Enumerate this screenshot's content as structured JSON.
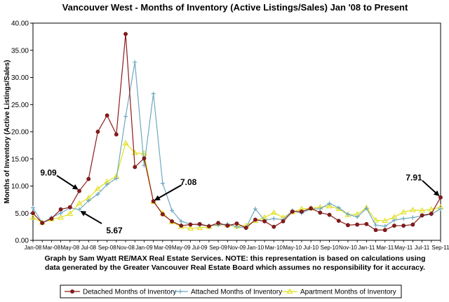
{
  "chart_data": {
    "type": "line",
    "title": "Vancouver West - Months of Inventory (Active Listings/Sales) Jan '08 to Present",
    "ylabel": "Months of Inventory (Active Listings/Sales)",
    "xlabel": "",
    "ylim": [
      0,
      40
    ],
    "yticks": [
      "0.00",
      "5.00",
      "10.00",
      "15.00",
      "20.00",
      "25.00",
      "30.00",
      "35.00",
      "40.00"
    ],
    "ytick_values": [
      0,
      5,
      10,
      15,
      20,
      25,
      30,
      35,
      40
    ],
    "x": [
      "Jan-08",
      "Feb-08",
      "Mar-08",
      "Apr-08",
      "May-08",
      "Jun-08",
      "Jul-08",
      "Aug-08",
      "Sep-08",
      "Oct-08",
      "Nov-08",
      "Dec-08",
      "Jan-09",
      "Feb-09",
      "Mar-09",
      "Apr-09",
      "May-09",
      "Jun-09",
      "Jul-09",
      "Aug-09",
      "Sep-09",
      "Oct-09",
      "Nov-09",
      "Dec-09",
      "Jan-10",
      "Feb-10",
      "Mar-10",
      "Apr-10",
      "May-10",
      "Jun-10",
      "Jul-10",
      "Aug-10",
      "Sep-10",
      "Oct-10",
      "Nov-10",
      "Dec-10",
      "Jan-11",
      "Feb-11",
      "Mar-11",
      "Apr-11",
      "May-11",
      "Jun-11",
      "Jul-11",
      "Aug-11",
      "Sep-11"
    ],
    "xticks": [
      "Jan-08",
      "Mar-08",
      "May-08",
      "Jul-08",
      "Sep-08",
      "Nov-08",
      "Jan-09",
      "Mar-09",
      "May-09",
      "Jul-09",
      "Sep-09",
      "Nov-09",
      "Jan-10",
      "Mar-10",
      "May-10",
      "Jul-10",
      "Sep-10",
      "Nov-10",
      "Jan-11",
      "Mar-11",
      "May-11",
      "Jul-11",
      "Sep-11"
    ],
    "series": [
      {
        "name": "Detached Months of Inventory",
        "color": "#8b1a1a",
        "marker": "circle",
        "values": [
          5.0,
          3.2,
          4.0,
          5.7,
          6.1,
          9.09,
          11.3,
          20.0,
          23.0,
          19.5,
          38.0,
          13.5,
          15.1,
          7.2,
          4.8,
          3.5,
          2.7,
          2.9,
          3.0,
          2.6,
          3.2,
          2.7,
          3.1,
          2.3,
          3.8,
          3.5,
          2.5,
          3.5,
          5.3,
          5.3,
          5.9,
          5.1,
          4.7,
          3.6,
          2.8,
          2.9,
          3.0,
          1.9,
          1.9,
          2.7,
          2.7,
          2.9,
          4.6,
          4.9,
          7.91
        ]
      },
      {
        "name": "Attached Months of Inventory",
        "color": "#6fa8c0",
        "marker": "plus",
        "values": [
          6.0,
          3.2,
          4.2,
          5.0,
          6.0,
          5.67,
          7.3,
          8.5,
          10.3,
          11.4,
          22.8,
          32.8,
          13.8,
          27.0,
          10.5,
          5.5,
          3.5,
          3.0,
          2.8,
          2.7,
          2.8,
          3.0,
          2.5,
          2.3,
          5.8,
          3.7,
          4.0,
          3.8,
          5.5,
          5.0,
          5.8,
          5.8,
          6.8,
          6.0,
          4.8,
          4.3,
          5.9,
          2.8,
          2.6,
          3.7,
          4.0,
          4.2,
          4.5,
          4.8,
          5.8
        ]
      },
      {
        "name": "Apartment Months of Inventory",
        "color": "#e0e020",
        "marker": "triangle",
        "values": [
          4.2,
          3.3,
          3.9,
          4.2,
          4.9,
          6.8,
          7.8,
          9.5,
          10.8,
          11.8,
          17.9,
          16.1,
          16.0,
          7.08,
          5.0,
          3.4,
          2.5,
          2.2,
          2.3,
          2.5,
          3.0,
          2.8,
          2.6,
          2.7,
          3.6,
          4.2,
          5.1,
          4.2,
          5.2,
          5.8,
          5.9,
          6.1,
          6.3,
          5.8,
          4.7,
          4.8,
          6.0,
          3.7,
          3.6,
          4.3,
          5.2,
          5.6,
          5.5,
          5.7,
          6.1
        ]
      }
    ],
    "annotations": [
      {
        "text": "9.09",
        "series": 0,
        "index": 5
      },
      {
        "text": "5.67",
        "series": 1,
        "index": 5
      },
      {
        "text": "7.08",
        "series": 2,
        "index": 13
      },
      {
        "text": "7.91",
        "series": 0,
        "index": 44
      }
    ],
    "caption_lines": [
      "Graph by Sam Wyatt RE/MAX Real Estate Services.   NOTE: this representation is based on calculations using",
      "data generated by the Greater Vancouver Real Estate Board which assumes no responsibility for it accuracy."
    ],
    "legend_position": "bottom",
    "grid": false
  }
}
